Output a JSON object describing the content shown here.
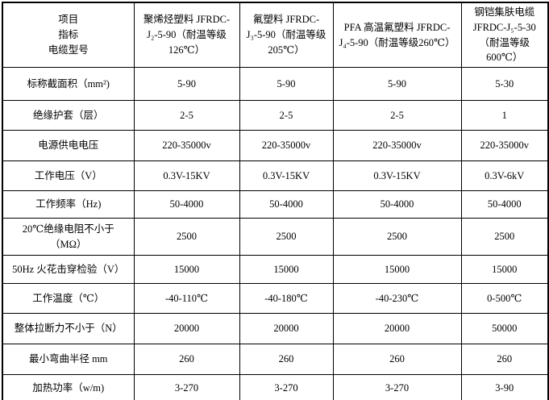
{
  "table": {
    "corner": [
      "项目",
      "指标",
      "电缆型号"
    ],
    "columns": [
      "聚烯烃塑料 JFRDC-J₂-5-90（耐温等级126℃）",
      "氟塑料 JFRDC-J₃-5-90（耐温等级205℃）",
      "PFA 高温氟塑料 JFRDC-J₄-5-90（耐温等级260℃）",
      "钢铠集肤电缆 JFRDC-J₅-5-30（耐温等级600℃）"
    ],
    "rows": [
      {
        "label": "标称截面积（mm²)",
        "values": [
          "5-90",
          "5-90",
          "5-90",
          "5-30"
        ]
      },
      {
        "label": "绝缘护套（层）",
        "values": [
          "2-5",
          "2-5",
          "2-5",
          "1"
        ]
      },
      {
        "label": "电源供电电压",
        "values": [
          "220-35000v",
          "220-35000v",
          "220-35000v",
          "220-35000v"
        ]
      },
      {
        "label": "工作电压（V）",
        "values": [
          "0.3V-15KV",
          "0.3V-15KV",
          "0.3V-15KV",
          "0.3V-6kV"
        ]
      },
      {
        "label": "工作频率（Hz)",
        "values": [
          "50-4000",
          "50-4000",
          "50-4000",
          "50-4000"
        ]
      },
      {
        "label": "20℃绝缘电阻不小于（MΩ）",
        "values": [
          "2500",
          "2500",
          "2500",
          "2500"
        ]
      },
      {
        "label": "50Hz 火花击穿检验（V）",
        "values": [
          "15000",
          "15000",
          "15000",
          "15000"
        ]
      },
      {
        "label": "工作温度（℃）",
        "values": [
          "-40-110℃",
          "-40-180℃",
          "-40-230℃",
          "0-500℃"
        ]
      },
      {
        "label": "整体拉断力不小于（N）",
        "values": [
          "20000",
          "20000",
          "20000",
          "50000"
        ]
      },
      {
        "label": "最小弯曲半径 mm",
        "values": [
          "260",
          "260",
          "260",
          "260"
        ]
      },
      {
        "label": "加热功率（w/m)",
        "values": [
          "3-270",
          "3-270",
          "3-270",
          "3-90"
        ]
      }
    ],
    "colors": {
      "border": "#000000",
      "text": "#000000",
      "background": "#ffffff"
    }
  }
}
